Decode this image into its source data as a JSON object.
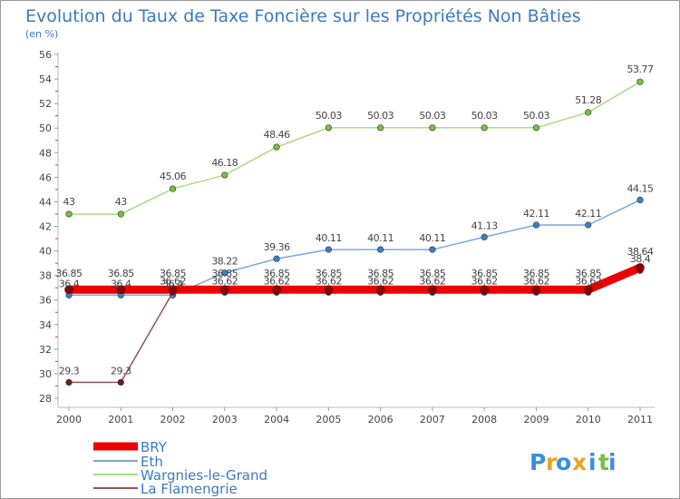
{
  "chart_data": {
    "type": "line",
    "title": "Evolution du Taux de Taxe Foncière sur les Propriétés Non Bâties",
    "ylabel": "(en %)",
    "xlabel": "",
    "categories": [
      "2000",
      "2001",
      "2002",
      "2003",
      "2004",
      "2005",
      "2006",
      "2007",
      "2008",
      "2009",
      "2010",
      "2011"
    ],
    "ylim": [
      28,
      56
    ],
    "yticks": [
      28,
      30,
      32,
      34,
      36,
      38,
      40,
      42,
      44,
      46,
      48,
      50,
      52,
      54,
      56
    ],
    "series": [
      {
        "name": "BRY",
        "color": "#ee0000",
        "marker_color": "#8b0000",
        "values": [
          36.85,
          36.85,
          36.85,
          36.85,
          36.85,
          36.85,
          36.85,
          36.85,
          36.85,
          36.85,
          36.85,
          38.64
        ],
        "labels": [
          "36.85",
          "36.85",
          "36.85",
          "36.85",
          "36.85",
          "36.85",
          "36.85",
          "36.85",
          "36.85",
          "36.85",
          "36.85",
          "38.64"
        ]
      },
      {
        "name": "Eth",
        "color": "#7aaad8",
        "marker_color": "#3a80c8",
        "values": [
          36.4,
          36.4,
          36.4,
          38.22,
          39.36,
          40.11,
          40.11,
          40.11,
          41.13,
          42.11,
          42.11,
          44.15
        ],
        "labels": [
          "36.4",
          "36.4",
          "36.4",
          "38.22",
          "39.36",
          "40.11",
          "40.11",
          "40.11",
          "41.13",
          "42.11",
          "42.11",
          "44.15"
        ]
      },
      {
        "name": "Wargnies-le-Grand",
        "color": "#a8dc80",
        "marker_color": "#78c040",
        "values": [
          43,
          43,
          45.06,
          46.18,
          48.46,
          50.03,
          50.03,
          50.03,
          50.03,
          50.03,
          51.28,
          53.77
        ],
        "labels": [
          "43",
          "43",
          "45.06",
          "46.18",
          "48.46",
          "50.03",
          "50.03",
          "50.03",
          "50.03",
          "50.03",
          "51.28",
          "53.77"
        ]
      },
      {
        "name": "La Flamengrie",
        "color": "#9a5252",
        "marker_color": "#6a2020",
        "values": [
          29.3,
          29.3,
          36.62,
          36.62,
          36.62,
          36.62,
          36.62,
          36.62,
          36.62,
          36.62,
          36.62,
          38.4
        ],
        "labels": [
          "29.3",
          "29.3",
          "36.62",
          "36.62",
          "36.62",
          "36.62",
          "36.62",
          "36.62",
          "36.62",
          "36.62",
          "36.62",
          "38.4"
        ]
      }
    ],
    "legend": [
      "BRY",
      "Eth",
      "Wargnies-le-Grand",
      "La Flamengrie"
    ],
    "legend_position": "bottom-left",
    "grid": false
  },
  "brand": {
    "letters": [
      "P",
      "r",
      "o",
      "x",
      "i",
      "t",
      "i"
    ],
    "colors": [
      "#3a8fd8",
      "#f0a020",
      "#3a8fd8",
      "#f0a020",
      "#3a8fd8",
      "#78c040",
      "#3a8fd8"
    ]
  }
}
